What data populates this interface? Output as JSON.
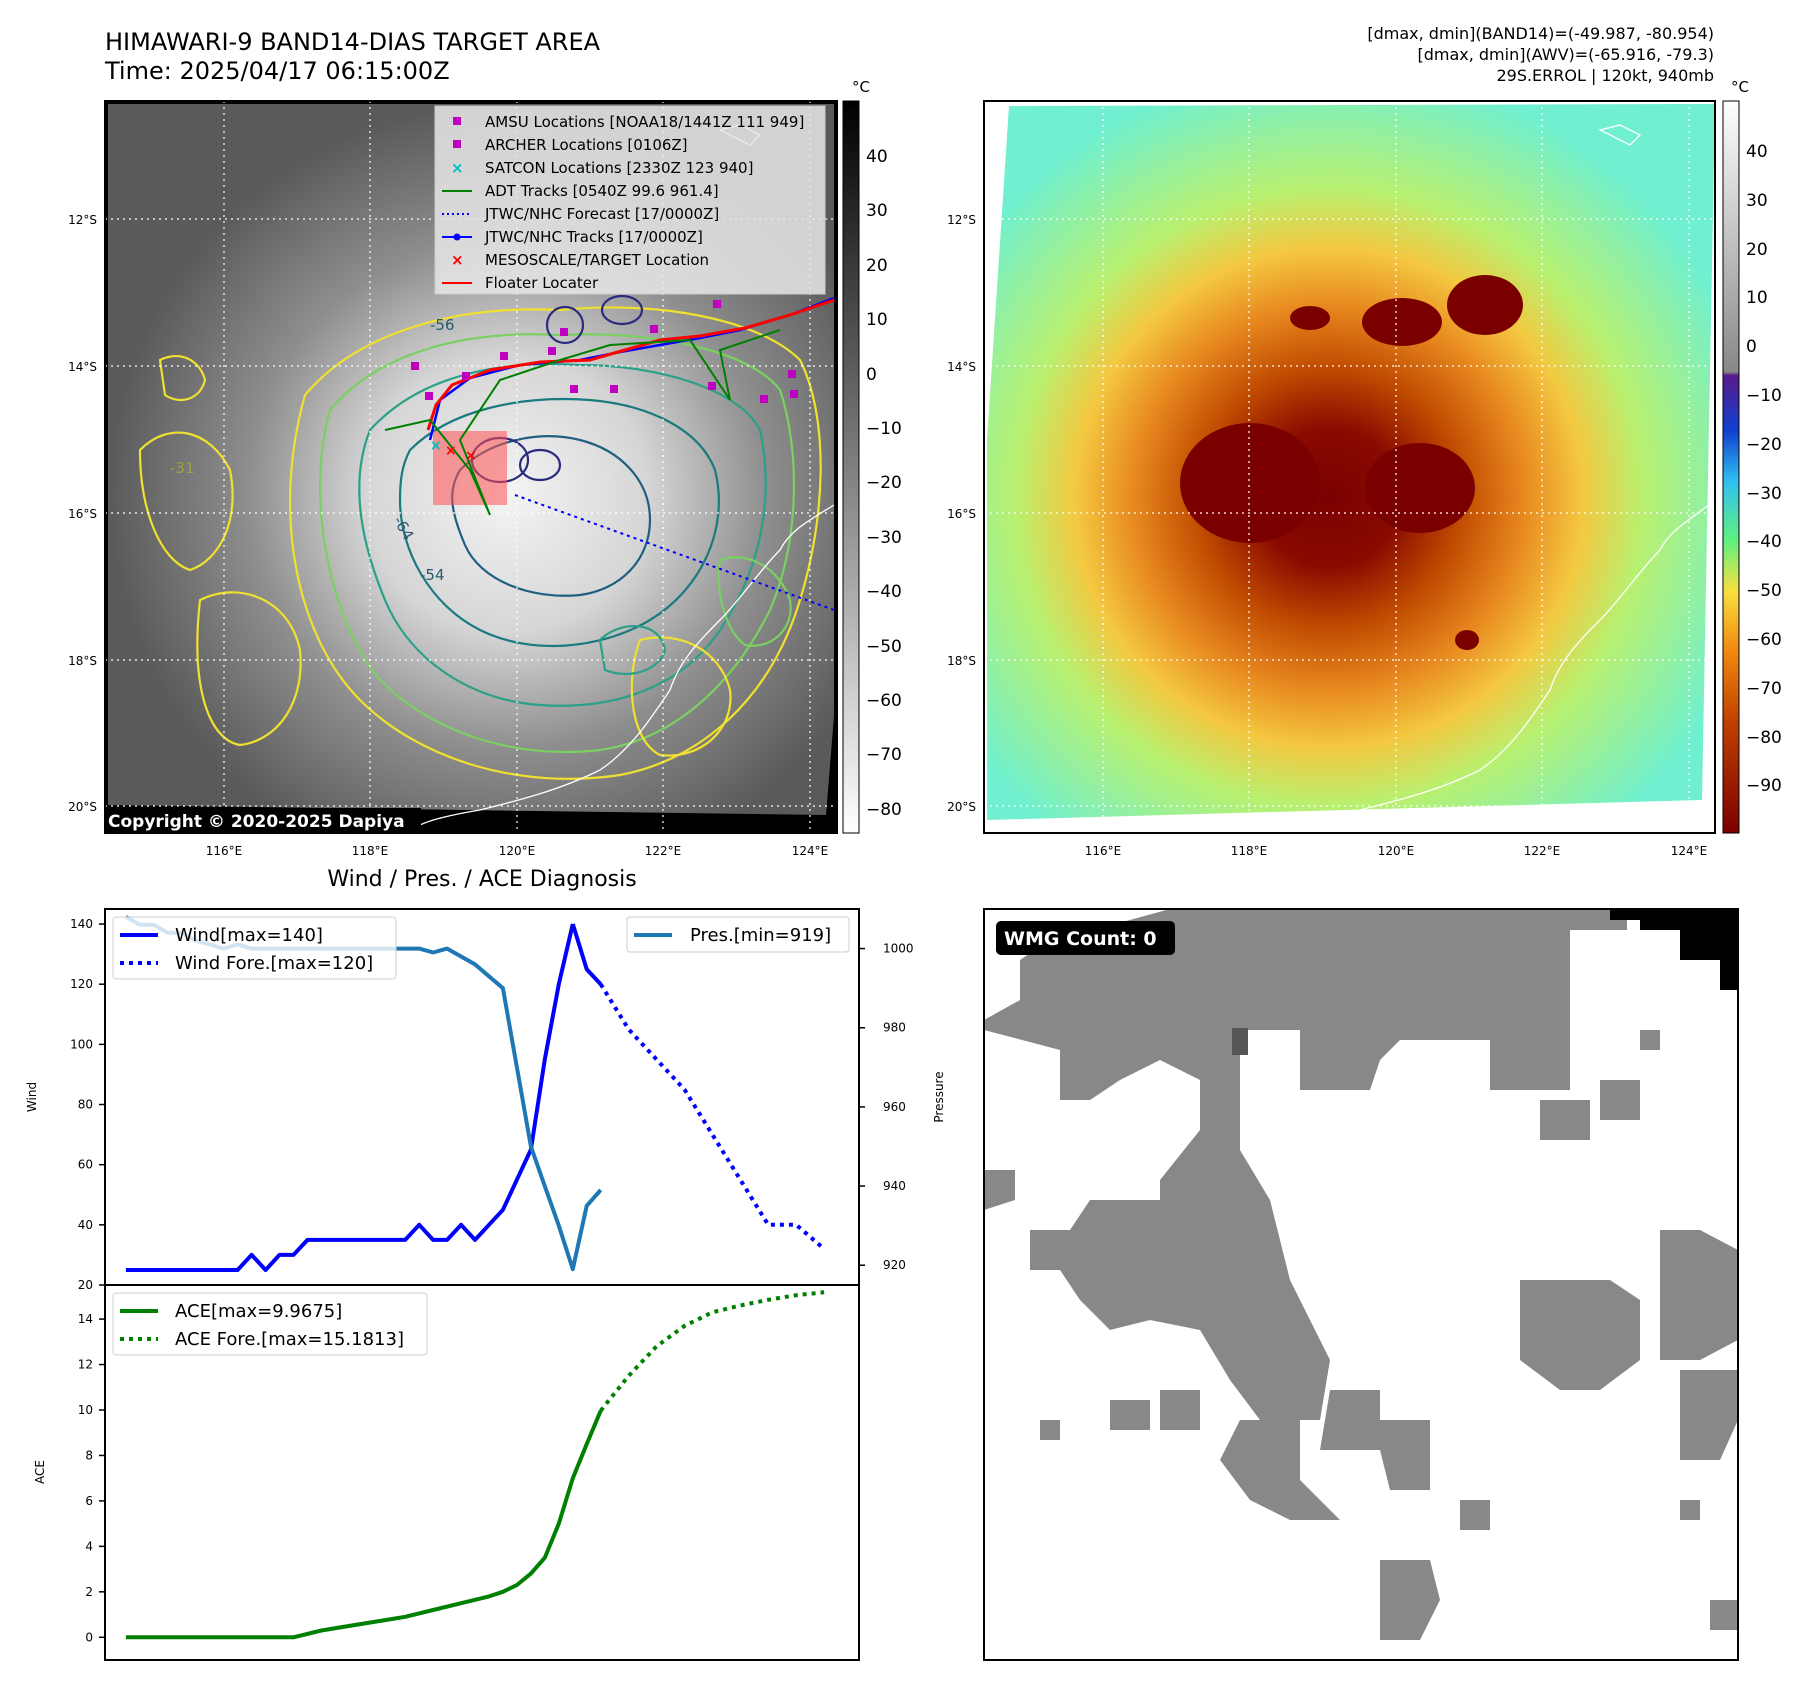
{
  "header": {
    "title_line1": "HIMAWARI-9 BAND14-DIAS TARGET AREA",
    "title_line2": "Time: 2025/04/17 06:15:00Z",
    "info_line1": "[dmax, dmin](BAND14)=(-49.987, -80.954)",
    "info_line2": "[dmax, dmin](AWV)=(-65.916, -79.3)",
    "info_line3": "29S.ERROL | 120kt, 940mb"
  },
  "map": {
    "lat_labels": [
      "12°S",
      "14°S",
      "16°S",
      "18°S",
      "20°S"
    ],
    "lon_labels": [
      "116°E",
      "118°E",
      "120°E",
      "122°E",
      "124°E"
    ],
    "copyright": "Copyright © 2020-2025 Dapiya",
    "contour_labels": [
      "-64",
      "-54",
      "-31",
      "-56"
    ],
    "legend": [
      {
        "label": "AMSU Locations [NOAA18/1441Z 111 949]",
        "marker": "square",
        "color": "#c000c0"
      },
      {
        "label": "ARCHER Locations [0106Z]",
        "marker": "square",
        "color": "#c000c0"
      },
      {
        "label": "SATCON Locations [2330Z 123 940]",
        "marker": "x",
        "color": "#00bfbf"
      },
      {
        "label": "ADT Tracks [0540Z 99.6 961.4]",
        "marker": "line",
        "color": "#008000"
      },
      {
        "label": "JTWC/NHC Forecast [17/0000Z]",
        "marker": "dotted",
        "color": "#0000ff"
      },
      {
        "label": "JTWC/NHC Tracks [17/0000Z]",
        "marker": "line-dot",
        "color": "#0000ff"
      },
      {
        "label": "MESOSCALE/TARGET Location",
        "marker": "x",
        "color": "#ff0000"
      },
      {
        "label": "Floater Locater",
        "marker": "line",
        "color": "#ff0000"
      }
    ]
  },
  "colorbars": {
    "unit": "°C",
    "gray_ticks": [
      "40",
      "30",
      "20",
      "10",
      "0",
      "−10",
      "−20",
      "−30",
      "−40",
      "−50",
      "−60",
      "−70",
      "−80"
    ],
    "color_ticks": [
      "40",
      "30",
      "20",
      "10",
      "0",
      "−10",
      "−20",
      "−30",
      "−40",
      "−50",
      "−60",
      "−70",
      "−80",
      "−90"
    ]
  },
  "wmg": {
    "badge": "WMG Count: 0"
  },
  "colors": {
    "wind": "#0000ff",
    "pressure": "#1f77b4",
    "ace": "#008000"
  },
  "chart_data": [
    {
      "type": "line",
      "title": "Wind / Pres. / ACE Diagnosis",
      "ylabel": "Wind",
      "y2label": "Pressure",
      "ylim": [
        20,
        145
      ],
      "y2lim": [
        915,
        1010
      ],
      "yticks": [
        20,
        40,
        60,
        80,
        100,
        120,
        140
      ],
      "y2ticks": [
        920,
        940,
        960,
        980,
        1000
      ],
      "legend_left": [
        "Wind[max=140]",
        "Wind Fore.[max=120]"
      ],
      "legend_right": [
        "Pres.[min=919]"
      ],
      "series": [
        {
          "name": "Wind[max=140]",
          "style": "solid",
          "x": [
            0,
            1,
            2,
            3,
            4,
            5,
            6,
            7,
            8,
            9,
            10,
            11,
            12,
            13,
            14,
            15,
            16,
            17,
            18,
            19,
            20,
            21,
            22,
            23,
            24,
            25,
            26,
            27,
            28,
            29,
            30,
            31,
            32
          ],
          "values": [
            25,
            25,
            25,
            25,
            25,
            25,
            25,
            25,
            25,
            30,
            25,
            30,
            30,
            35,
            35,
            35,
            35,
            35,
            35,
            35,
            35,
            40,
            35,
            35,
            40,
            35,
            40,
            45,
            55,
            65,
            95,
            120,
            140
          ]
        },
        {
          "name": "Wind[max=140]",
          "style": "solid",
          "x": [
            32,
            33,
            34
          ],
          "values": [
            140,
            125,
            120
          ]
        },
        {
          "name": "Wind Fore.[max=120]",
          "style": "dotted",
          "x": [
            34,
            36,
            38,
            40,
            42,
            44,
            46,
            48,
            50
          ],
          "values": [
            120,
            105,
            95,
            85,
            70,
            55,
            40,
            40,
            32
          ]
        },
        {
          "name": "Pres.[min=919]",
          "style": "solid",
          "x": [
            0,
            1,
            2,
            3,
            4,
            5,
            6,
            7,
            8,
            9,
            10,
            11,
            12,
            13,
            14,
            15,
            16,
            17,
            18,
            19,
            20,
            21,
            22,
            23,
            24,
            25,
            26,
            27,
            28,
            29,
            30,
            31,
            32,
            33,
            34
          ],
          "values": [
            1008,
            1006,
            1006,
            1004,
            1004,
            1002,
            1001,
            1000,
            1001,
            1000,
            1000,
            1000,
            1000,
            1000,
            1000,
            1000,
            1000,
            1000,
            1000,
            1000,
            1000,
            1000,
            999,
            1000,
            998,
            996,
            993,
            990,
            970,
            950,
            940,
            930,
            919,
            935,
            939
          ]
        }
      ]
    },
    {
      "type": "line",
      "ylabel": "ACE",
      "ylim": [
        -1,
        15.5
      ],
      "yticks": [
        0,
        2,
        4,
        6,
        8,
        10,
        12,
        14
      ],
      "legend": [
        "ACE[max=9.9675]",
        "ACE Fore.[max=15.1813]"
      ],
      "series": [
        {
          "name": "ACE[max=9.9675]",
          "style": "solid",
          "x": [
            0,
            2,
            4,
            6,
            8,
            10,
            12,
            14,
            16,
            18,
            20,
            22,
            24,
            26,
            27,
            28,
            29,
            30,
            31,
            32,
            33,
            34
          ],
          "values": [
            0,
            0,
            0,
            0,
            0,
            0,
            0,
            0.3,
            0.5,
            0.7,
            0.9,
            1.2,
            1.5,
            1.8,
            2.0,
            2.3,
            2.8,
            3.5,
            5.0,
            7.0,
            8.5,
            9.97
          ]
        },
        {
          "name": "ACE Fore.[max=15.1813]",
          "style": "dotted",
          "x": [
            34,
            36,
            38,
            40,
            42,
            44,
            46,
            48,
            50
          ],
          "values": [
            9.97,
            11.5,
            12.8,
            13.7,
            14.3,
            14.6,
            14.85,
            15.05,
            15.18
          ]
        }
      ]
    }
  ]
}
